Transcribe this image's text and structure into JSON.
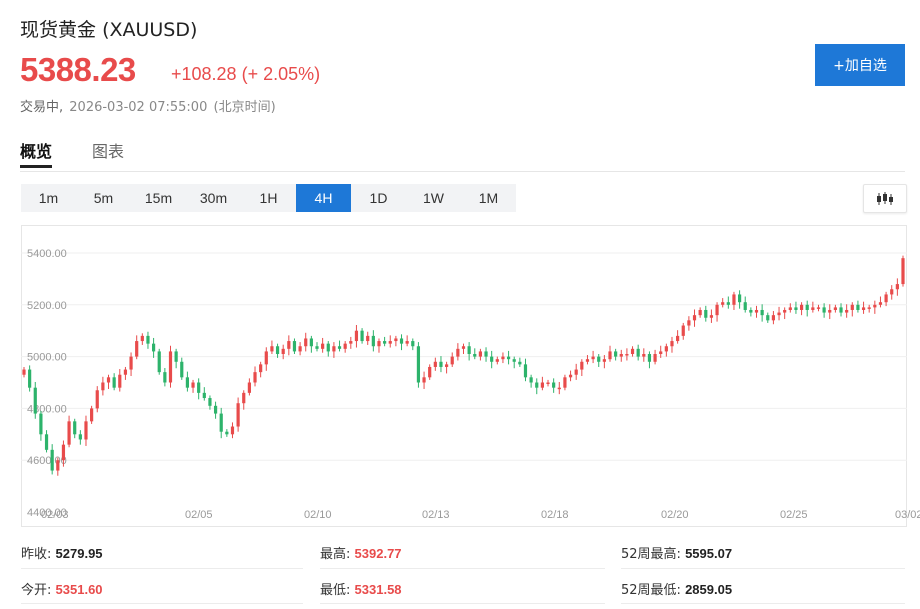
{
  "header": {
    "name": "现货黄金",
    "symbol": "(XAUUSD)",
    "price": "5388.23",
    "change": "+108.28",
    "change_pct": "(+ 2.05%)",
    "status": "交易中,",
    "timestamp": "2026-03-02 07:55:00",
    "timezone": "(北京时间)",
    "add_button": "+加自选"
  },
  "tabs": [
    {
      "label": "概览",
      "active": true
    },
    {
      "label": "图表",
      "active": false
    }
  ],
  "periods": [
    "1m",
    "5m",
    "15m",
    "30m",
    "1H",
    "4H",
    "1D",
    "1W",
    "1M"
  ],
  "active_period": "4H",
  "chart_type_icon": "candlestick-icon",
  "colors": {
    "up": "#e84b4b",
    "down": "#2db36b",
    "accent": "#1e78d7"
  },
  "chart_data": {
    "type": "candlestick",
    "ylim": [
      4400,
      5420
    ],
    "y_ticks": [
      "5400.00",
      "5200.00",
      "5000.00",
      "4800.00",
      "4600.00",
      "4400.00"
    ],
    "x_ticks": [
      "02/03",
      "02/05",
      "02/10",
      "02/13",
      "02/18",
      "02/20",
      "02/25",
      "03/02"
    ],
    "grid": true,
    "closes": [
      4950,
      4880,
      4780,
      4700,
      4640,
      4560,
      4600,
      4660,
      4750,
      4700,
      4680,
      4750,
      4800,
      4870,
      4900,
      4920,
      4880,
      4930,
      4950,
      5000,
      5060,
      5080,
      5050,
      5020,
      4940,
      4900,
      5020,
      4980,
      4920,
      4880,
      4900,
      4860,
      4840,
      4810,
      4780,
      4710,
      4700,
      4730,
      4820,
      4860,
      4900,
      4940,
      4970,
      5020,
      5040,
      5010,
      5030,
      5060,
      5020,
      5040,
      5070,
      5040,
      5030,
      5050,
      5020,
      5040,
      5030,
      5050,
      5060,
      5100,
      5060,
      5080,
      5040,
      5060,
      5050,
      5060,
      5070,
      5050,
      5060,
      5040,
      4900,
      4920,
      4960,
      4980,
      4960,
      4970,
      5000,
      5030,
      5040,
      5010,
      5000,
      5020,
      5000,
      4980,
      4990,
      5000,
      4990,
      4980,
      4970,
      4920,
      4900,
      4880,
      4900,
      4900,
      4880,
      4880,
      4920,
      4930,
      4950,
      4980,
      4990,
      5000,
      4980,
      4990,
      5020,
      5000,
      5010,
      5010,
      5030,
      5000,
      5010,
      4980,
      5010,
      5020,
      5040,
      5060,
      5080,
      5120,
      5140,
      5160,
      5180,
      5150,
      5160,
      5200,
      5210,
      5200,
      5240,
      5210,
      5180,
      5170,
      5180,
      5160,
      5140,
      5160,
      5170,
      5180,
      5190,
      5180,
      5200,
      5180,
      5190,
      5190,
      5170,
      5180,
      5190,
      5170,
      5180,
      5200,
      5180,
      5190,
      5190,
      5200,
      5210,
      5240,
      5260,
      5280,
      5380
    ]
  },
  "stats": {
    "prev_close": {
      "label": "昨收:",
      "value": "5279.95"
    },
    "open": {
      "label": "今开:",
      "value": "5351.60"
    },
    "high": {
      "label": "最高:",
      "value": "5392.77"
    },
    "low": {
      "label": "最低:",
      "value": "5331.58"
    },
    "high52": {
      "label": "52周最高:",
      "value": "5595.07"
    },
    "low52": {
      "label": "52周最低:",
      "value": "2859.05"
    }
  }
}
